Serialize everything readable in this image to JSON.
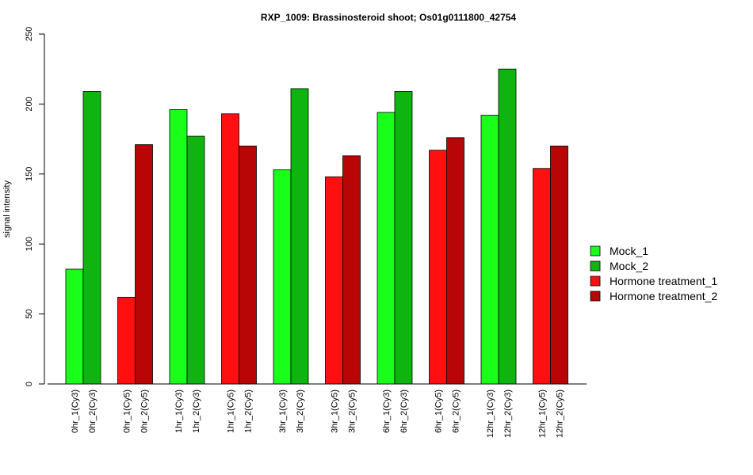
{
  "chart_data": {
    "type": "bar",
    "title": "RXP_1009: Brassinosteroid shoot; Os01g0111800_42754",
    "xlabel": "",
    "ylabel": "signal intensity",
    "ylim": [
      0,
      250
    ],
    "yticks": [
      0,
      50,
      100,
      150,
      200,
      250
    ],
    "grid": false,
    "legend_position": "right",
    "colors": {
      "Mock_1": "#19ff19",
      "Mock_2": "#10b410",
      "Hormone treatment_1": "#ff1010",
      "Hormone treatment_2": "#b80505"
    },
    "legend": [
      "Mock_1",
      "Mock_2",
      "Hormone treatment_1",
      "Hormone treatment_2"
    ],
    "groups": [
      {
        "bars": [
          {
            "label": "0hr_1(Cy3)",
            "series": "Mock_1",
            "value": 82
          },
          {
            "label": "0hr_2(Cy3)",
            "series": "Mock_2",
            "value": 209
          }
        ]
      },
      {
        "bars": [
          {
            "label": "0hr_1(Cy5)",
            "series": "Hormone treatment_1",
            "value": 62
          },
          {
            "label": "0hr_2(Cy5)",
            "series": "Hormone treatment_2",
            "value": 171
          }
        ]
      },
      {
        "bars": [
          {
            "label": "1hr_1(Cy3)",
            "series": "Mock_1",
            "value": 196
          },
          {
            "label": "1hr_2(Cy3)",
            "series": "Mock_2",
            "value": 177
          }
        ]
      },
      {
        "bars": [
          {
            "label": "1hr_1(Cy5)",
            "series": "Hormone treatment_1",
            "value": 193
          },
          {
            "label": "1hr_2(Cy5)",
            "series": "Hormone treatment_2",
            "value": 170
          }
        ]
      },
      {
        "bars": [
          {
            "label": "3hr_1(Cy3)",
            "series": "Mock_1",
            "value": 153
          },
          {
            "label": "3hr_2(Cy3)",
            "series": "Mock_2",
            "value": 211
          }
        ]
      },
      {
        "bars": [
          {
            "label": "3hr_1(Cy5)",
            "series": "Hormone treatment_1",
            "value": 148
          },
          {
            "label": "3hr_2(Cy5)",
            "series": "Hormone treatment_2",
            "value": 163
          }
        ]
      },
      {
        "bars": [
          {
            "label": "6hr_1(Cy3)",
            "series": "Mock_1",
            "value": 194
          },
          {
            "label": "6hr_2(Cy3)",
            "series": "Mock_2",
            "value": 209
          }
        ]
      },
      {
        "bars": [
          {
            "label": "6hr_1(Cy5)",
            "series": "Hormone treatment_1",
            "value": 167
          },
          {
            "label": "6hr_2(Cy5)",
            "series": "Hormone treatment_2",
            "value": 176
          }
        ]
      },
      {
        "bars": [
          {
            "label": "12hr_1(Cy3)",
            "series": "Mock_1",
            "value": 192
          },
          {
            "label": "12hr_2(Cy3)",
            "series": "Mock_2",
            "value": 225
          }
        ]
      },
      {
        "bars": [
          {
            "label": "12hr_1(Cy5)",
            "series": "Hormone treatment_1",
            "value": 154
          },
          {
            "label": "12hr_2(Cy5)",
            "series": "Hormone treatment_2",
            "value": 170
          }
        ]
      }
    ]
  }
}
